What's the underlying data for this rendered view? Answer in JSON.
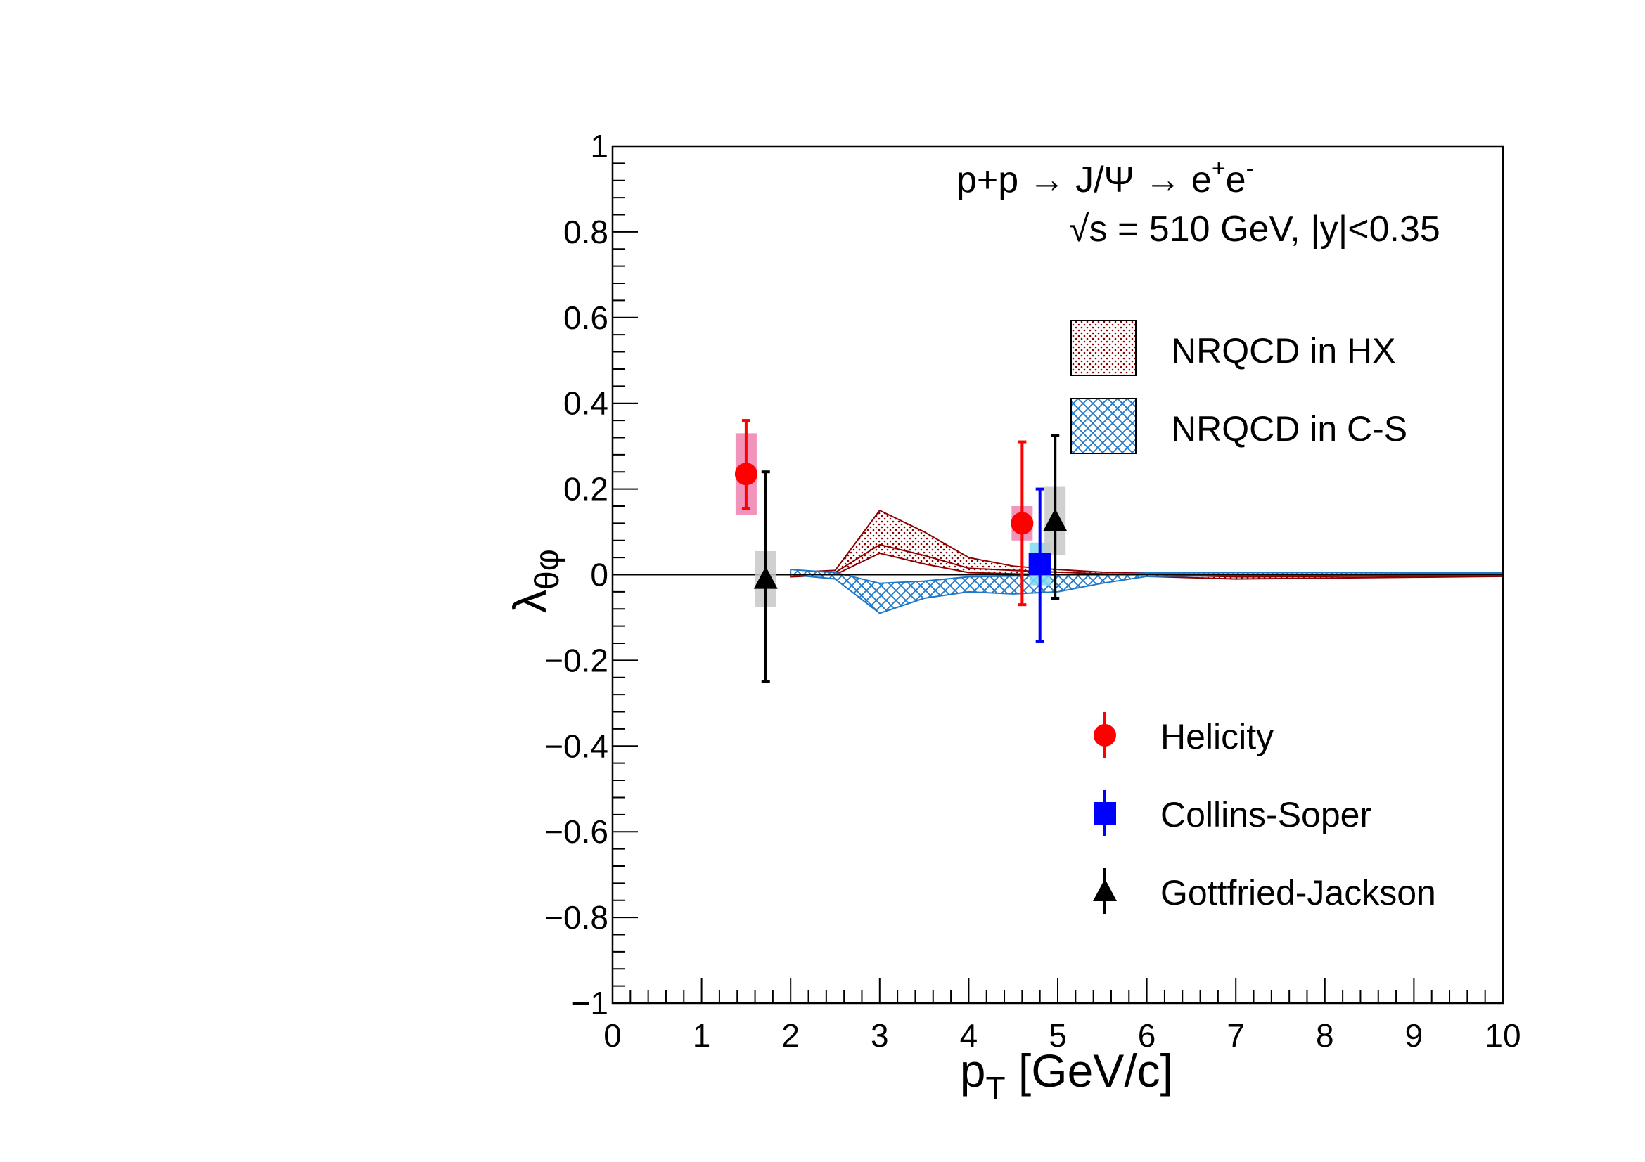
{
  "chart_data": {
    "type": "scatter",
    "annotation": {
      "line1_main": "p+p → J/Ψ → e",
      "line1_sup1": "+",
      "line1_mid": "e",
      "line1_sup2": "-",
      "line2_sqrt": "√",
      "line2_rest": "s = 510 GeV, |y|<0.35"
    },
    "x_axis": {
      "label_main": "p",
      "label_sub": "T",
      "label_rest": " [GeV/c]",
      "range": [
        0,
        10
      ],
      "ticks": [
        "0",
        "1",
        "2",
        "3",
        "4",
        "5",
        "6",
        "7",
        "8",
        "9",
        "10"
      ]
    },
    "y_axis": {
      "label_main": "λ",
      "label_sub": "θφ",
      "range": [
        -1,
        1
      ],
      "ticks": [
        "−1",
        "−0.8",
        "−0.6",
        "−0.4",
        "−0.2",
        "0",
        "0.2",
        "0.4",
        "0.6",
        "0.8",
        "1"
      ]
    },
    "zero_line": true,
    "grid": false,
    "legend_bands": {
      "placement": "top-right",
      "entries": [
        "NRQCD in HX",
        "NRQCD in C-S"
      ]
    },
    "legend_points": {
      "placement": "bottom-right",
      "entries": [
        "Helicity",
        "Collins-Soper",
        "Gottfried-Jackson"
      ]
    },
    "series": [
      {
        "name": "Helicity",
        "color": "#ff0000",
        "sys_color": "#f080b0",
        "marker": "circle",
        "points": [
          {
            "x": 1.5,
            "y": 0.235,
            "err_lo": 0.08,
            "err_hi": 0.125,
            "sys": 0.095
          },
          {
            "x": 4.6,
            "y": 0.12,
            "err_lo": 0.19,
            "err_hi": 0.19,
            "sys": 0.04
          }
        ]
      },
      {
        "name": "Collins-Soper",
        "color": "#0000ff",
        "sys_color": "#80d8f0",
        "marker": "square",
        "points": [
          {
            "x": 4.8,
            "y": 0.025,
            "err_lo": 0.18,
            "err_hi": 0.175,
            "sys": 0.05
          }
        ]
      },
      {
        "name": "Gottfried-Jackson",
        "color": "#000000",
        "sys_color": "#c8c8c8",
        "marker": "triangle",
        "points": [
          {
            "x": 1.72,
            "y": -0.01,
            "err_lo": 0.24,
            "err_hi": 0.25,
            "sys": 0.065
          },
          {
            "x": 4.97,
            "y": 0.125,
            "err_lo": 0.18,
            "err_hi": 0.2,
            "sys": 0.08
          }
        ]
      }
    ],
    "bands": [
      {
        "name": "NRQCD in HX",
        "color": "#8b0000",
        "pattern": "dots",
        "x": [
          2.0,
          2.5,
          3.0,
          3.5,
          4.0,
          4.5,
          5.0,
          5.5,
          6.0,
          7.0,
          8.0,
          9.0,
          10.0
        ],
        "upper": [
          0.005,
          0.01,
          0.15,
          0.1,
          0.04,
          0.02,
          0.012,
          0.006,
          0.004,
          0.0,
          0.0,
          0.0,
          0.0
        ],
        "lower": [
          -0.005,
          0.0,
          0.05,
          0.025,
          0.005,
          0.002,
          0.0,
          -0.002,
          -0.004,
          -0.01,
          -0.008,
          -0.006,
          -0.004
        ],
        "center": [
          0.0,
          0.005,
          0.07,
          0.045,
          0.015,
          0.01,
          0.006,
          0.002,
          0.0,
          -0.005,
          -0.004,
          -0.003,
          -0.002
        ]
      },
      {
        "name": "NRQCD in C-S",
        "color": "#1f77c8",
        "pattern": "crosshatch",
        "x": [
          2.0,
          2.5,
          3.0,
          3.5,
          4.0,
          4.5,
          5.0,
          5.5,
          6.0,
          7.0,
          8.0,
          9.0,
          10.0
        ],
        "upper": [
          0.012,
          0.005,
          -0.02,
          -0.015,
          -0.005,
          -0.003,
          0.0,
          0.0,
          0.004,
          0.005,
          0.005,
          0.004,
          0.004
        ],
        "lower": [
          0.0,
          -0.01,
          -0.09,
          -0.055,
          -0.04,
          -0.045,
          -0.04,
          -0.02,
          -0.004,
          -0.002,
          -0.002,
          -0.002,
          -0.002
        ]
      }
    ]
  }
}
